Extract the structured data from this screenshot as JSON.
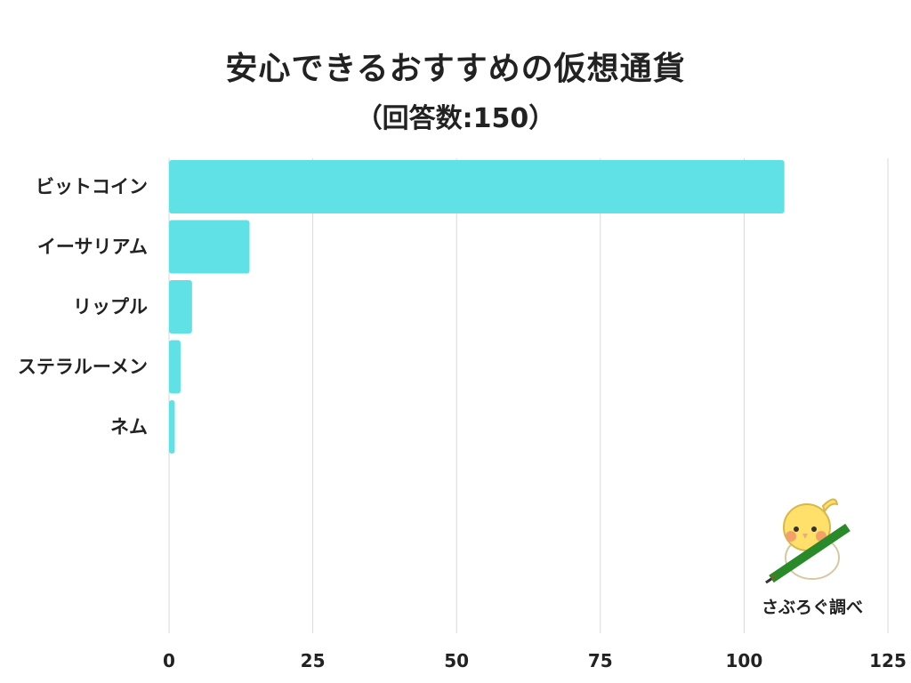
{
  "header": {
    "title": "安心できるおすすめの仮想通貨",
    "subtitle": "（回答数:150）"
  },
  "credit": "さぶろぐ調べ",
  "colors": {
    "bar": "#5fe1e6",
    "grid": "#d9d9d9",
    "text": "#222222"
  },
  "chart_data": {
    "type": "bar",
    "orientation": "horizontal",
    "title": "安心できるおすすめの仮想通貨",
    "subtitle": "（回答数:150）",
    "categories": [
      "ビットコイン",
      "イーサリアム",
      "リップル",
      "ステラルーメン",
      "ネム"
    ],
    "values": [
      107,
      14,
      4,
      2,
      1
    ],
    "xlim": [
      0,
      125
    ],
    "xticks": [
      0,
      25,
      50,
      75,
      100,
      125
    ],
    "grid": true,
    "legend": "none"
  }
}
